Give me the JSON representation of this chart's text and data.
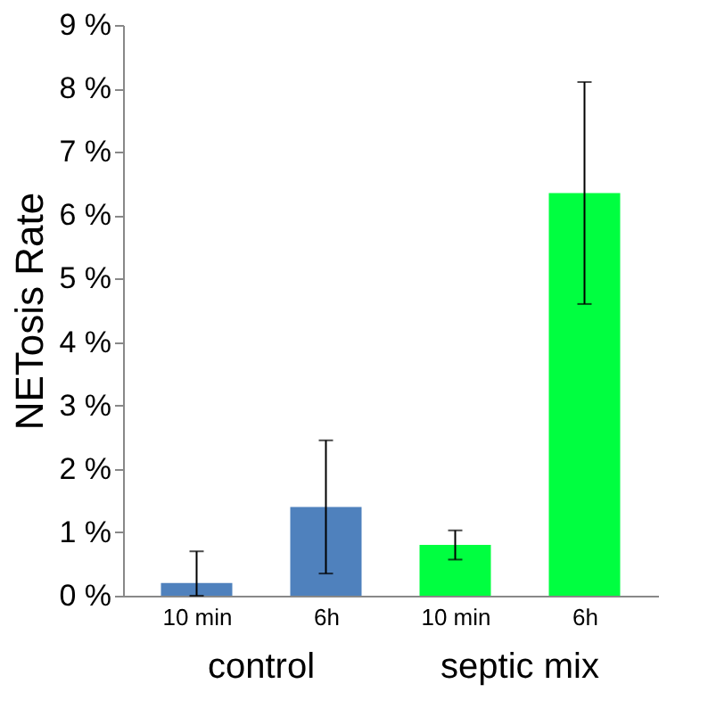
{
  "chart_data": {
    "type": "bar",
    "ylabel": "NETosis Rate",
    "categories": [
      "10 min",
      "6h",
      "10 min",
      "6h"
    ],
    "values": [
      0.2,
      1.4,
      0.8,
      6.35
    ],
    "colors": [
      "#4f81bd",
      "#4f81bd",
      "#00ff40",
      "#00ff40"
    ],
    "errors": [
      [
        0,
        0.7
      ],
      1.05,
      0.23,
      1.75
    ],
    "annotations": [
      "control",
      "septic mix"
    ],
    "ylim": [
      0,
      9
    ],
    "yticks": [
      {
        "value": 0,
        "label": "0 %"
      },
      {
        "value": 1,
        "label": "1 %"
      },
      {
        "value": 2,
        "label": "2 %"
      },
      {
        "value": 3,
        "label": "3 %"
      },
      {
        "value": 4,
        "label": "4 %"
      },
      {
        "value": 5,
        "label": "5 %"
      },
      {
        "value": 6,
        "label": "6 %"
      },
      {
        "value": 7,
        "label": "7 %"
      },
      {
        "value": 8,
        "label": "8 %"
      },
      {
        "value": 9,
        "label": "9 %"
      }
    ],
    "grid": false
  }
}
